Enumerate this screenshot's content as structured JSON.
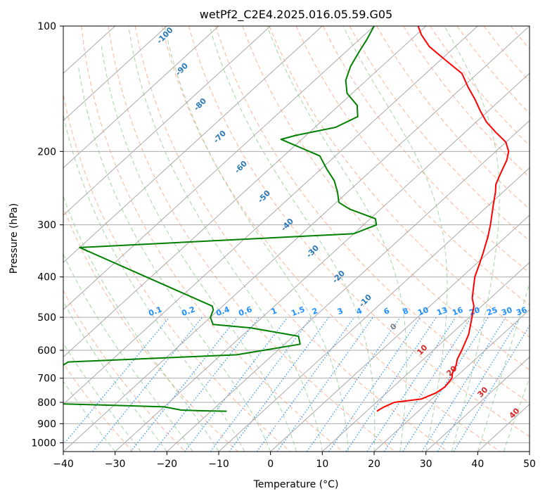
{
  "chart_data": {
    "type": "line",
    "title": "wetPf2_C2E4.2025.016.05.59.G05",
    "xlabel": "Temperature (°C)",
    "ylabel": "Pressure (hPa)",
    "xlim": [
      -40,
      50
    ],
    "ylim": [
      1050,
      100
    ],
    "y_scale": "log",
    "grid": true,
    "x_ticks": [
      -40,
      -30,
      -20,
      -10,
      0,
      10,
      20,
      30,
      40,
      50
    ],
    "y_ticks": [
      100,
      200,
      300,
      400,
      500,
      600,
      700,
      800,
      900,
      1000
    ],
    "skew_labels": {
      "dry_adiabats": [
        "-100",
        "-90",
        "-80",
        "-70",
        "-60",
        "-50",
        "-40",
        "-30",
        "-20",
        "-10"
      ],
      "moist_adiabats": [
        "0",
        "10",
        "20",
        "30",
        "40"
      ],
      "mixing_ratios": [
        "0.1",
        "0.2",
        "0.4",
        "0.6",
        "1",
        "1.5",
        "2",
        "3",
        "4",
        "6",
        "8",
        "10",
        "13",
        "16",
        "20",
        "25",
        "30",
        "36"
      ]
    },
    "colors": {
      "temperature": "#ff0000",
      "dewpoint": "#008000",
      "isotherm": "#aaaaaa",
      "dry_adiabat": "#ffa07a",
      "moist_adiabat": "#90c890",
      "mixing_ratio": "#1e90ff",
      "isobar": "#aaaaaa"
    },
    "series": [
      {
        "key": "temperature",
        "points": [
          {
            "p": 840,
            "t": 12.0
          },
          {
            "p": 830,
            "t": 12.2
          },
          {
            "p": 820,
            "t": 12.5
          },
          {
            "p": 800,
            "t": 13.5
          },
          {
            "p": 785,
            "t": 18.0
          },
          {
            "p": 760,
            "t": 19.5
          },
          {
            "p": 735,
            "t": 20.0
          },
          {
            "p": 700,
            "t": 19.5
          },
          {
            "p": 680,
            "t": 18.5
          },
          {
            "p": 650,
            "t": 17.5
          },
          {
            "p": 630,
            "t": 16.5
          },
          {
            "p": 600,
            "t": 15.5
          },
          {
            "p": 550,
            "t": 13.5
          },
          {
            "p": 500,
            "t": 10.5
          },
          {
            "p": 470,
            "t": 8.5
          },
          {
            "p": 450,
            "t": 6.5
          },
          {
            "p": 400,
            "t": 2.5
          },
          {
            "p": 370,
            "t": 0.5
          },
          {
            "p": 350,
            "t": -1.0
          },
          {
            "p": 320,
            "t": -3.5
          },
          {
            "p": 300,
            "t": -5.5
          },
          {
            "p": 270,
            "t": -9.0
          },
          {
            "p": 250,
            "t": -11.5
          },
          {
            "p": 240,
            "t": -13.0
          },
          {
            "p": 230,
            "t": -14.0
          },
          {
            "p": 220,
            "t": -15.0
          },
          {
            "p": 210,
            "t": -16.0
          },
          {
            "p": 200,
            "t": -17.5
          },
          {
            "p": 190,
            "t": -20.0
          },
          {
            "p": 180,
            "t": -24.0
          },
          {
            "p": 170,
            "t": -28.0
          },
          {
            "p": 160,
            "t": -31.5
          },
          {
            "p": 150,
            "t": -35.0
          },
          {
            "p": 140,
            "t": -39.0
          },
          {
            "p": 130,
            "t": -43.0
          },
          {
            "p": 120,
            "t": -49.5
          },
          {
            "p": 112,
            "t": -55.0
          },
          {
            "p": 105,
            "t": -59.0
          },
          {
            "p": 100,
            "t": -61.5
          }
        ]
      },
      {
        "key": "dewpoint",
        "points": [
          {
            "p": 840,
            "t": -17.0
          },
          {
            "p": 838,
            "t": -22.0
          },
          {
            "p": 835,
            "t": -26.0
          },
          {
            "p": 820,
            "t": -30.0
          },
          {
            "p": 810,
            "t": -45.0
          },
          {
            "p": 800,
            "t": -62.0
          },
          {
            "p": 640,
            "t": -58.0
          },
          {
            "p": 615,
            "t": -27.0
          },
          {
            "p": 580,
            "t": -17.0
          },
          {
            "p": 555,
            "t": -19.0
          },
          {
            "p": 530,
            "t": -30.0
          },
          {
            "p": 520,
            "t": -38.0
          },
          {
            "p": 500,
            "t": -40.0
          },
          {
            "p": 480,
            "t": -41.0
          },
          {
            "p": 470,
            "t": -42.0
          },
          {
            "p": 340,
            "t": -80.0
          },
          {
            "p": 315,
            "t": -30.0
          },
          {
            "p": 300,
            "t": -27.5
          },
          {
            "p": 290,
            "t": -29.0
          },
          {
            "p": 275,
            "t": -36.0
          },
          {
            "p": 265,
            "t": -39.5
          },
          {
            "p": 250,
            "t": -42.0
          },
          {
            "p": 235,
            "t": -45.0
          },
          {
            "p": 220,
            "t": -49.0
          },
          {
            "p": 205,
            "t": -53.0
          },
          {
            "p": 195,
            "t": -59.0
          },
          {
            "p": 187,
            "t": -64.0
          },
          {
            "p": 183,
            "t": -62.0
          },
          {
            "p": 175,
            "t": -56.0
          },
          {
            "p": 165,
            "t": -54.0
          },
          {
            "p": 155,
            "t": -56.5
          },
          {
            "p": 145,
            "t": -61.0
          },
          {
            "p": 135,
            "t": -64.0
          },
          {
            "p": 125,
            "t": -66.0
          },
          {
            "p": 115,
            "t": -67.5
          },
          {
            "p": 108,
            "t": -68.5
          },
          {
            "p": 100,
            "t": -70.0
          }
        ]
      }
    ]
  }
}
